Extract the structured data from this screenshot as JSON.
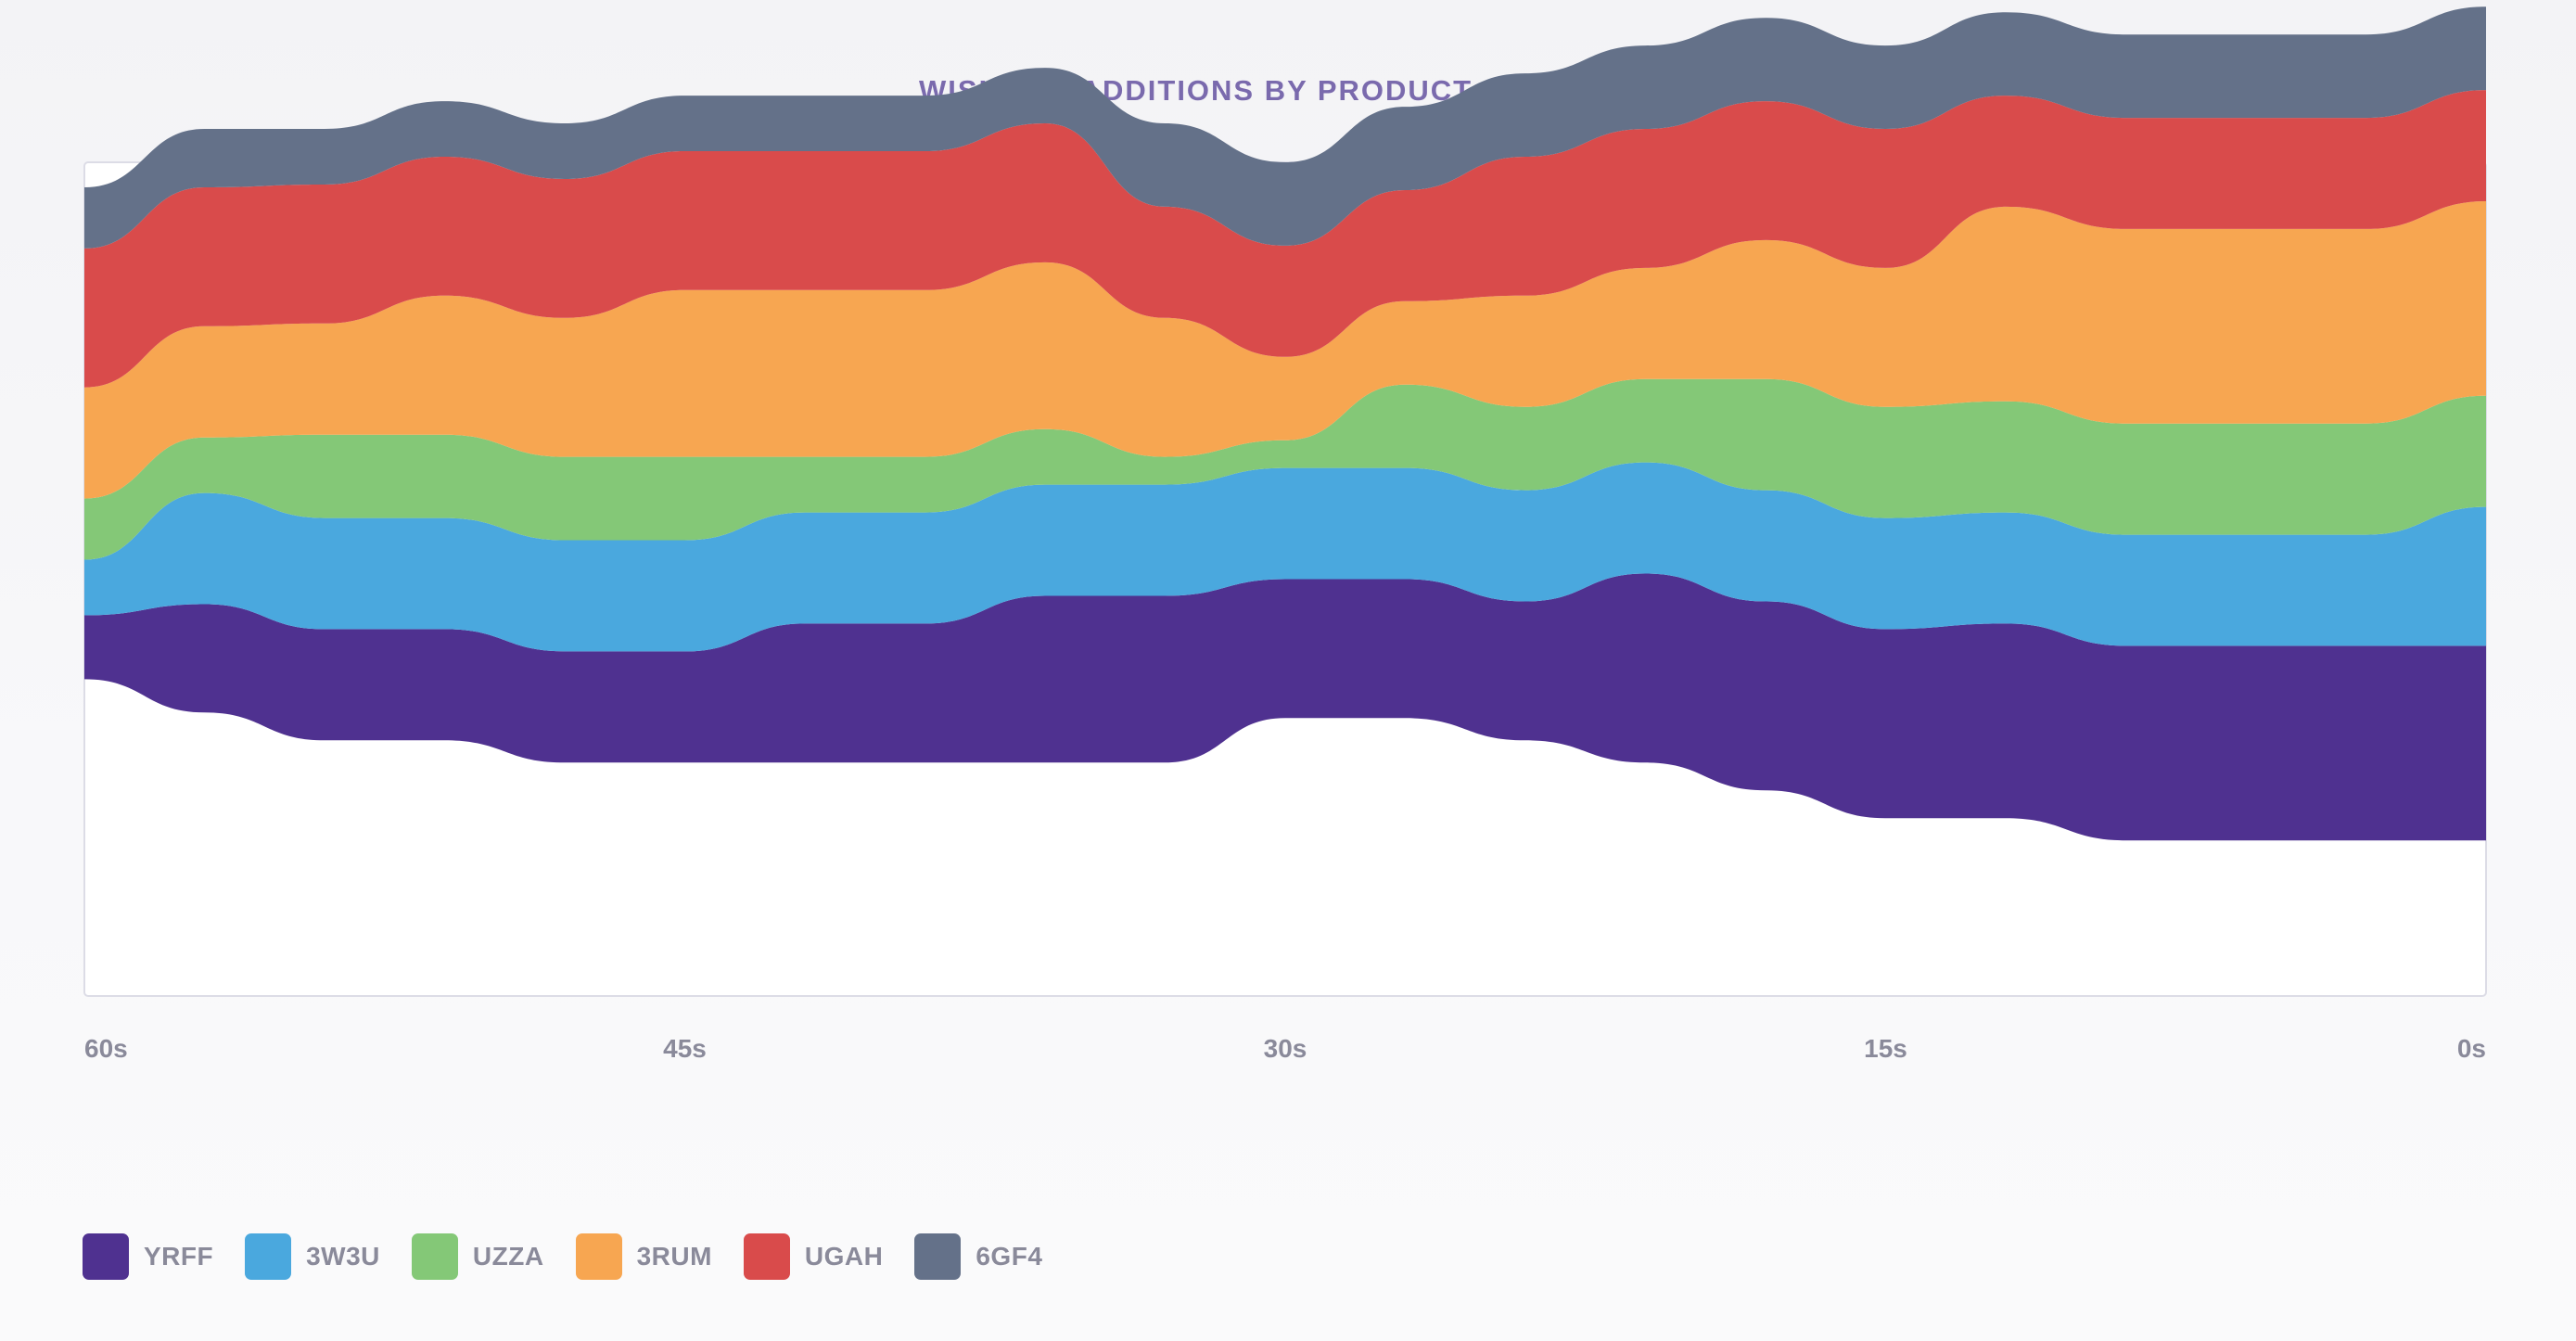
{
  "chart_data": {
    "type": "area",
    "subtype": "streamgraph",
    "title": "WISHLIST ADDITIONS BY PRODUCT CATEGORY",
    "xlabel": "",
    "ylabel": "",
    "x_direction": "seconds ago",
    "xlim": [
      60,
      0
    ],
    "ylim": [
      -15,
      15
    ],
    "x_ticks": [
      60,
      45,
      30,
      15,
      0
    ],
    "x_tick_labels": [
      "60s",
      "45s",
      "30s",
      "15s",
      "0s"
    ],
    "x": [
      60,
      57,
      54,
      51,
      48,
      45,
      42,
      39,
      36,
      33,
      30,
      27,
      24,
      21,
      18,
      15,
      12,
      9,
      6,
      3,
      0
    ],
    "baseline": [
      -3.6,
      -4.8,
      -5.8,
      -5.8,
      -6.6,
      -6.6,
      -6.6,
      -6.6,
      -6.6,
      -6.6,
      -5.0,
      -5.0,
      -5.8,
      -6.6,
      -7.6,
      -8.6,
      -8.6,
      -9.4,
      -9.4,
      -9.4,
      -9.4
    ],
    "series": [
      {
        "name": "YRFF",
        "color": "#4f3190",
        "values": [
          2.3,
          3.9,
          4.0,
          4.0,
          4.0,
          4.0,
          5.0,
          5.0,
          6.0,
          6.0,
          5.0,
          5.0,
          5.0,
          6.8,
          6.8,
          6.8,
          7.0,
          7.0,
          7.0,
          7.0,
          7.0
        ]
      },
      {
        "name": "3W3U",
        "color": "#4aa8de",
        "values": [
          2.0,
          4.0,
          4.0,
          4.0,
          4.0,
          4.0,
          4.0,
          4.0,
          4.0,
          4.0,
          4.0,
          4.0,
          4.0,
          4.0,
          4.0,
          4.0,
          4.0,
          4.0,
          4.0,
          4.0,
          5.0
        ]
      },
      {
        "name": "UZZA",
        "color": "#84c877",
        "values": [
          2.2,
          2.0,
          3.0,
          3.0,
          3.0,
          3.0,
          2.0,
          2.0,
          2.0,
          1.0,
          1.0,
          3.0,
          3.0,
          3.0,
          4.0,
          4.0,
          4.0,
          4.0,
          4.0,
          4.0,
          4.0
        ]
      },
      {
        "name": "3RUM",
        "color": "#f7a651",
        "values": [
          4.0,
          4.0,
          4.0,
          5.0,
          5.0,
          6.0,
          6.0,
          6.0,
          6.0,
          5.0,
          3.0,
          3.0,
          4.0,
          4.0,
          5.0,
          5.0,
          7.0,
          7.0,
          7.0,
          7.0,
          7.0
        ]
      },
      {
        "name": "UGAH",
        "color": "#d94b4b",
        "values": [
          5.0,
          5.0,
          5.0,
          5.0,
          5.0,
          5.0,
          5.0,
          5.0,
          5.0,
          4.0,
          4.0,
          4.0,
          5.0,
          5.0,
          5.0,
          5.0,
          4.0,
          4.0,
          4.0,
          4.0,
          4.0
        ]
      },
      {
        "name": "6GF4",
        "color": "#647189",
        "values": [
          2.2,
          2.1,
          2.0,
          2.0,
          2.0,
          2.0,
          2.0,
          2.0,
          2.0,
          3.0,
          3.0,
          3.0,
          3.0,
          3.0,
          3.0,
          3.0,
          3.0,
          3.0,
          3.0,
          3.0,
          3.0
        ]
      }
    ],
    "legend_position": "bottom-left",
    "grid": false
  }
}
